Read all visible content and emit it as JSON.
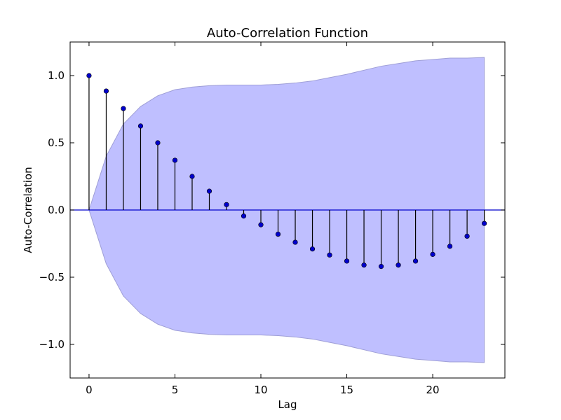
{
  "colors": {
    "band_fill": "#bfbfff",
    "band_edge": "#9e9ed6",
    "marker": "#0000cc",
    "zero_line": "#0000cc",
    "stem": "#000000"
  },
  "chart_data": {
    "type": "stem",
    "title": "Auto-Correlation Function",
    "xlabel": "Lag",
    "ylabel": "Auto-Correlation",
    "xlim": [
      -1.1,
      24.2
    ],
    "ylim": [
      -1.25,
      1.25
    ],
    "xticks": [
      0,
      5,
      10,
      15,
      20
    ],
    "xtick_labels": [
      "0",
      "5",
      "10",
      "15",
      "20"
    ],
    "yticks": [
      1.0,
      0.5,
      0.0,
      -0.5,
      -1.0
    ],
    "ytick_labels": [
      "1.0",
      "0.5",
      "0.0",
      "−0.5",
      "−1.0"
    ],
    "grid": false,
    "series": [
      {
        "type": "stem",
        "x": [
          0,
          1,
          2,
          3,
          4,
          5,
          6,
          7,
          8,
          9,
          10,
          11,
          12,
          13,
          14,
          15,
          16,
          17,
          18,
          19,
          20,
          21,
          22,
          23
        ],
        "values": [
          1.0,
          0.885,
          0.755,
          0.625,
          0.5,
          0.37,
          0.25,
          0.14,
          0.04,
          -0.045,
          -0.11,
          -0.18,
          -0.24,
          -0.29,
          -0.335,
          -0.38,
          -0.41,
          -0.42,
          -0.41,
          -0.38,
          -0.33,
          -0.27,
          -0.195,
          -0.1
        ]
      }
    ],
    "confidence_band": {
      "x": [
        0,
        1,
        2,
        3,
        4,
        5,
        6,
        7,
        8,
        9,
        10,
        11,
        12,
        13,
        14,
        15,
        16,
        17,
        18,
        19,
        20,
        21,
        22,
        23
      ],
      "upper": [
        0.0,
        0.4,
        0.64,
        0.77,
        0.85,
        0.895,
        0.915,
        0.925,
        0.93,
        0.93,
        0.93,
        0.935,
        0.945,
        0.96,
        0.985,
        1.01,
        1.04,
        1.07,
        1.09,
        1.11,
        1.12,
        1.13,
        1.13,
        1.135
      ]
    }
  }
}
